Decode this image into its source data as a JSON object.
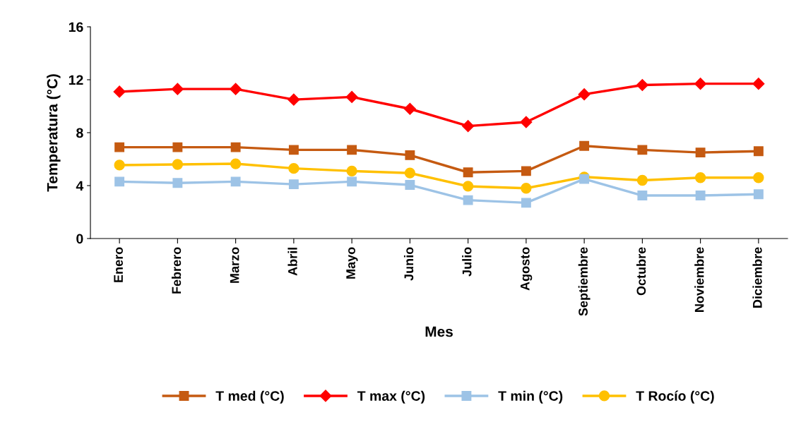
{
  "chart_data": {
    "type": "line",
    "xlabel": "Mes",
    "ylabel": "Temperatura (°C)",
    "categories": [
      "Enero",
      "Febrero",
      "Marzo",
      "Abril",
      "Mayo",
      "Junio",
      "Julio",
      "Agosto",
      "Septiembre",
      "Octubre",
      "Noviembre",
      "Diciembre"
    ],
    "series": [
      {
        "name": "T med (°C)",
        "color": "#c55a11",
        "marker": "square",
        "values": [
          6.9,
          6.9,
          6.9,
          6.7,
          6.7,
          6.3,
          5.0,
          5.1,
          7.0,
          6.7,
          6.5,
          6.6
        ]
      },
      {
        "name": "T max (°C)",
        "color": "#ff0000",
        "marker": "diamond",
        "values": [
          11.1,
          11.3,
          11.3,
          10.5,
          10.7,
          9.8,
          8.5,
          8.8,
          10.9,
          11.6,
          11.7,
          11.7
        ]
      },
      {
        "name": "T min (°C)",
        "color": "#9dc3e6",
        "marker": "square",
        "values": [
          4.3,
          4.2,
          4.3,
          4.1,
          4.3,
          4.05,
          2.9,
          2.7,
          4.5,
          3.25,
          3.25,
          3.35
        ]
      },
      {
        "name": "T Rocío (°C)",
        "color": "#ffc000",
        "marker": "circle",
        "values": [
          5.55,
          5.6,
          5.65,
          5.3,
          5.1,
          4.95,
          3.95,
          3.8,
          4.65,
          4.4,
          4.6,
          4.6
        ]
      }
    ],
    "ylim": [
      0,
      16
    ],
    "yticks": [
      0,
      4,
      8,
      12,
      16
    ],
    "grid": false,
    "legend": "bottom",
    "line_style": "solid"
  }
}
